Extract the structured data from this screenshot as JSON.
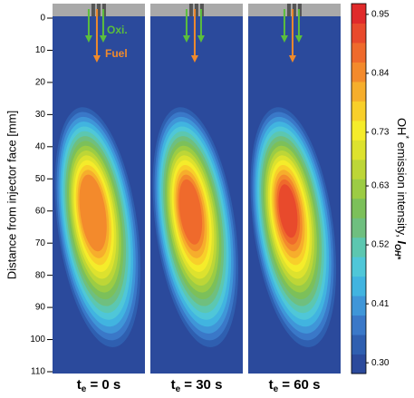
{
  "chart_data": {
    "type": "heatmap",
    "ylabel": "Distance from injector face [mm]",
    "ylim": [
      0,
      110
    ],
    "yticks": [
      0,
      10,
      20,
      30,
      40,
      50,
      60,
      70,
      80,
      90,
      100,
      110
    ],
    "panels": [
      {
        "label": "t",
        "label_sub": "e",
        "label_rest": " = 0 s"
      },
      {
        "label": "t",
        "label_sub": "e",
        "label_rest": " = 30 s"
      },
      {
        "label": "t",
        "label_sub": "e",
        "label_rest": " = 60 s"
      }
    ],
    "annotations": [
      {
        "text": "Oxi.",
        "color": "#5bbf3c"
      },
      {
        "text": "Fuel",
        "color": "#f08a2c"
      }
    ],
    "colorbar": {
      "label": "OH",
      "label_sup": "*",
      "label_rest": " emission intensity, ",
      "symbol": "I",
      "symbol_sub": "OH*",
      "clim": [
        0.28,
        0.97
      ],
      "ticks": [
        {
          "value": 0.3,
          "label": "0.30"
        },
        0.41,
        0.52,
        0.63,
        0.73,
        0.84,
        0.95
      ],
      "colors": [
        "#2b4a9c",
        "#2f5fb0",
        "#3a78c8",
        "#3f96d8",
        "#41b4e0",
        "#4fc7d8",
        "#5cc7b0",
        "#6fbf7f",
        "#7cc05a",
        "#9ccc44",
        "#bdd637",
        "#dde22e",
        "#f5ec2a",
        "#f8cf2a",
        "#f6ae2c",
        "#f38a2c",
        "#ef6a2c",
        "#e84a2c",
        "#e02a2a"
      ]
    }
  }
}
